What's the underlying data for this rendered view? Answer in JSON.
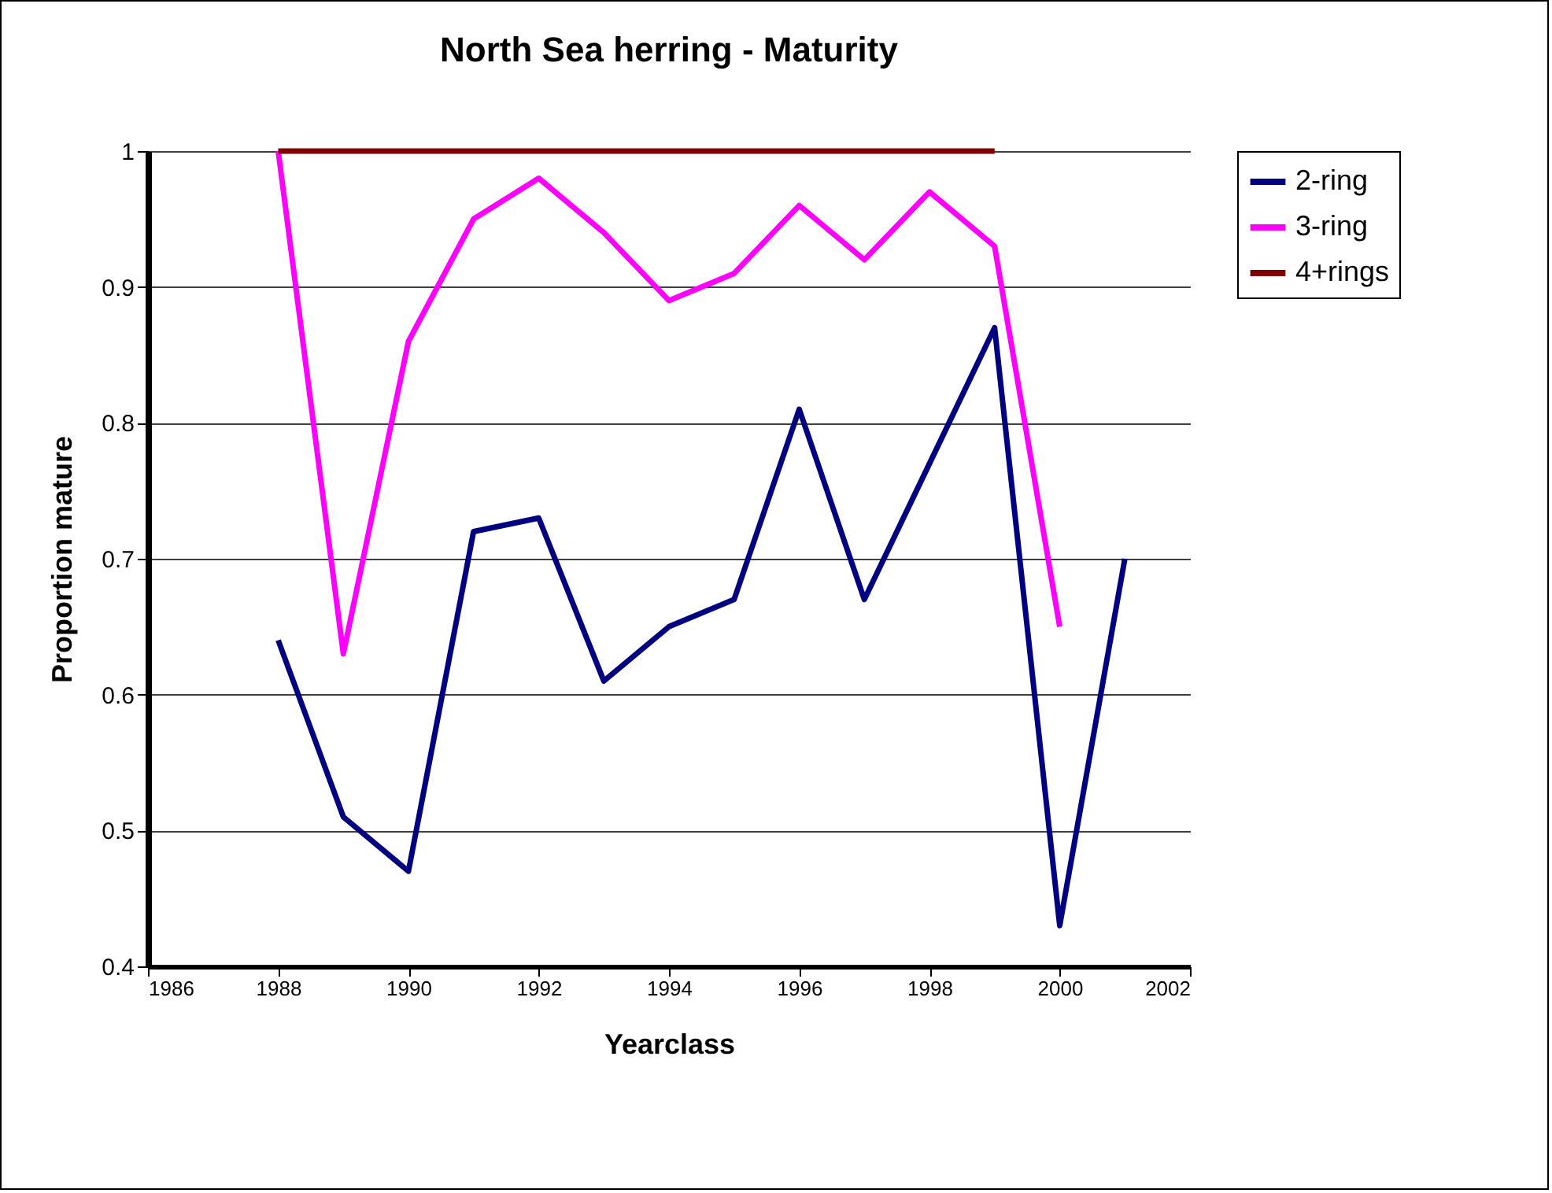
{
  "chart_data": {
    "type": "line",
    "title": "North Sea herring - Maturity",
    "xlabel": "Yearclass",
    "ylabel": "Proportion mature",
    "x": [
      1988,
      1989,
      1990,
      1991,
      1992,
      1993,
      1994,
      1995,
      1996,
      1997,
      1998,
      1999,
      2000,
      2001
    ],
    "series": [
      {
        "name": "2-ring",
        "color": "#000080",
        "values": [
          0.64,
          0.51,
          0.47,
          0.72,
          0.73,
          0.61,
          0.65,
          0.67,
          0.81,
          0.67,
          0.77,
          0.87,
          0.43,
          0.7
        ]
      },
      {
        "name": "3-ring",
        "color": "#ff00ff",
        "values": [
          1.0,
          0.63,
          0.86,
          0.95,
          0.98,
          0.94,
          0.89,
          0.91,
          0.96,
          0.92,
          0.97,
          0.93,
          0.65,
          null
        ]
      },
      {
        "name": "4+rings",
        "color": "#800000",
        "values": [
          1.0,
          1.0,
          1.0,
          1.0,
          1.0,
          1.0,
          1.0,
          1.0,
          1.0,
          1.0,
          1.0,
          1.0,
          null,
          null
        ]
      }
    ],
    "xlim": [
      1986,
      2002
    ],
    "xticks": [
      1986,
      1988,
      1990,
      1992,
      1994,
      1996,
      1998,
      2000,
      2002
    ],
    "ylim": [
      0.4,
      1
    ],
    "yticks": [
      0.4,
      0.5,
      0.6,
      0.7,
      0.8,
      0.9,
      1
    ],
    "grid": "y",
    "legend": "right",
    "marker": "none",
    "line_style": "solid"
  }
}
